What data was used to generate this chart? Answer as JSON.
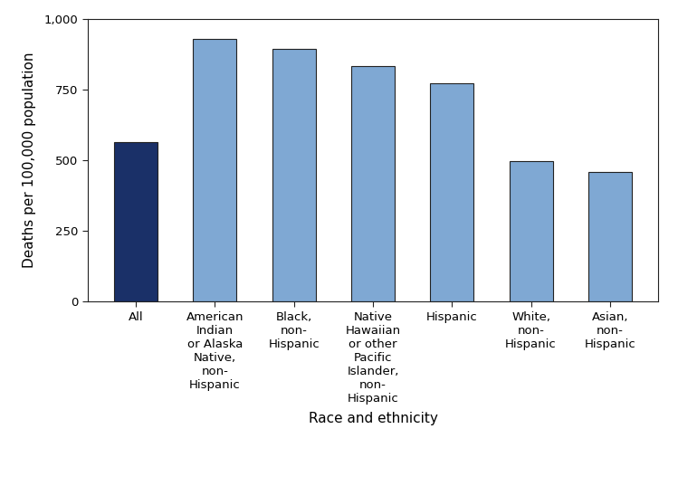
{
  "categories": [
    "All",
    "American\nIndian\nor Alaska\nNative,\nnon-\nHispanic",
    "Black,\nnon-\nHispanic",
    "Native\nHawaiian\nor other\nPacific\nIslander,\nnon-\nHispanic",
    "Hispanic",
    "White,\nnon-\nHispanic",
    "Asian,\nnon-\nHispanic"
  ],
  "values": [
    565,
    930,
    895,
    835,
    775,
    498,
    460
  ],
  "bar_colors": [
    "#1a3068",
    "#7fa8d3",
    "#7fa8d3",
    "#7fa8d3",
    "#7fa8d3",
    "#7fa8d3",
    "#7fa8d3"
  ],
  "bar_edge_color": "#222222",
  "bar_edge_width": 0.8,
  "xlabel": "Race and ethnicity",
  "ylabel": "Deaths per 100,000 population",
  "ylim": [
    0,
    1000
  ],
  "yticks": [
    0,
    250,
    500,
    750,
    1000
  ],
  "ytick_labels": [
    "0",
    "250",
    "500",
    "750",
    "1,000"
  ],
  "background_color": "#ffffff",
  "xlabel_fontsize": 11,
  "ylabel_fontsize": 11,
  "tick_fontsize": 9.5,
  "bar_width": 0.55
}
